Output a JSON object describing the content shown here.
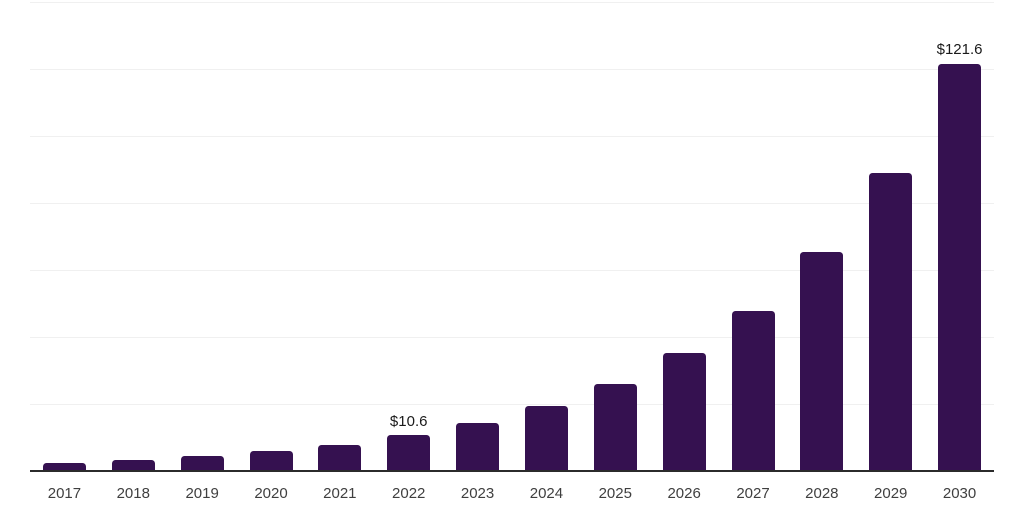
{
  "chart_data": {
    "type": "bar",
    "title": "",
    "xlabel": "",
    "ylabel": "",
    "categories": [
      "2017",
      "2018",
      "2019",
      "2020",
      "2021",
      "2022",
      "2023",
      "2024",
      "2025",
      "2026",
      "2027",
      "2028",
      "2029",
      "2030"
    ],
    "values": [
      2.5,
      3.4,
      4.4,
      6.0,
      7.9,
      10.6,
      14.3,
      19.3,
      26.1,
      35.2,
      47.9,
      65.3,
      89.1,
      121.6
    ],
    "point_labels": [
      "",
      "",
      "",
      "",
      "",
      "$10.6",
      "",
      "",
      "",
      "",
      "",
      "",
      "",
      "$121.6"
    ],
    "ylim": [
      0,
      140
    ],
    "gridline_step": 20,
    "grid": "horizontal-only",
    "y_axis_tick_labels": "none",
    "legend": "none",
    "colors": {
      "bar": "#351150",
      "gridline": "#f0f0f0",
      "axis": "#2b2b2b",
      "tick_label": "#3f3f3f",
      "value_label": "#1a1a1a",
      "background": "#ffffff"
    }
  }
}
